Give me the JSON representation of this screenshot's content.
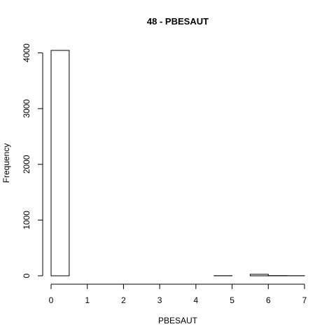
{
  "chart_data": {
    "type": "bar",
    "title": "48 - PBESAUT",
    "xlabel": "PBESAUT",
    "ylabel": "Frequency",
    "bins": [
      {
        "start": 0.0,
        "end": 0.5,
        "value": 4045
      },
      {
        "start": 0.5,
        "end": 1.0,
        "value": 0
      },
      {
        "start": 1.0,
        "end": 1.5,
        "value": 0
      },
      {
        "start": 1.5,
        "end": 2.0,
        "value": 0
      },
      {
        "start": 2.0,
        "end": 2.5,
        "value": 0
      },
      {
        "start": 2.5,
        "end": 3.0,
        "value": 0
      },
      {
        "start": 3.0,
        "end": 3.5,
        "value": 0
      },
      {
        "start": 3.5,
        "end": 4.0,
        "value": 0
      },
      {
        "start": 4.0,
        "end": 4.5,
        "value": 0
      },
      {
        "start": 4.5,
        "end": 5.0,
        "value": 2
      },
      {
        "start": 5.0,
        "end": 5.5,
        "value": 0
      },
      {
        "start": 5.5,
        "end": 6.0,
        "value": 27
      },
      {
        "start": 6.0,
        "end": 6.5,
        "value": 4
      },
      {
        "start": 6.5,
        "end": 7.0,
        "value": 2
      }
    ],
    "xlim": [
      0,
      7
    ],
    "ylim": [
      0,
      4045
    ],
    "x_ticks": [
      "0",
      "1",
      "2",
      "3",
      "4",
      "5",
      "6",
      "7"
    ],
    "y_ticks": [
      "0",
      "1000",
      "2000",
      "3000",
      "4000"
    ],
    "grid": false
  }
}
